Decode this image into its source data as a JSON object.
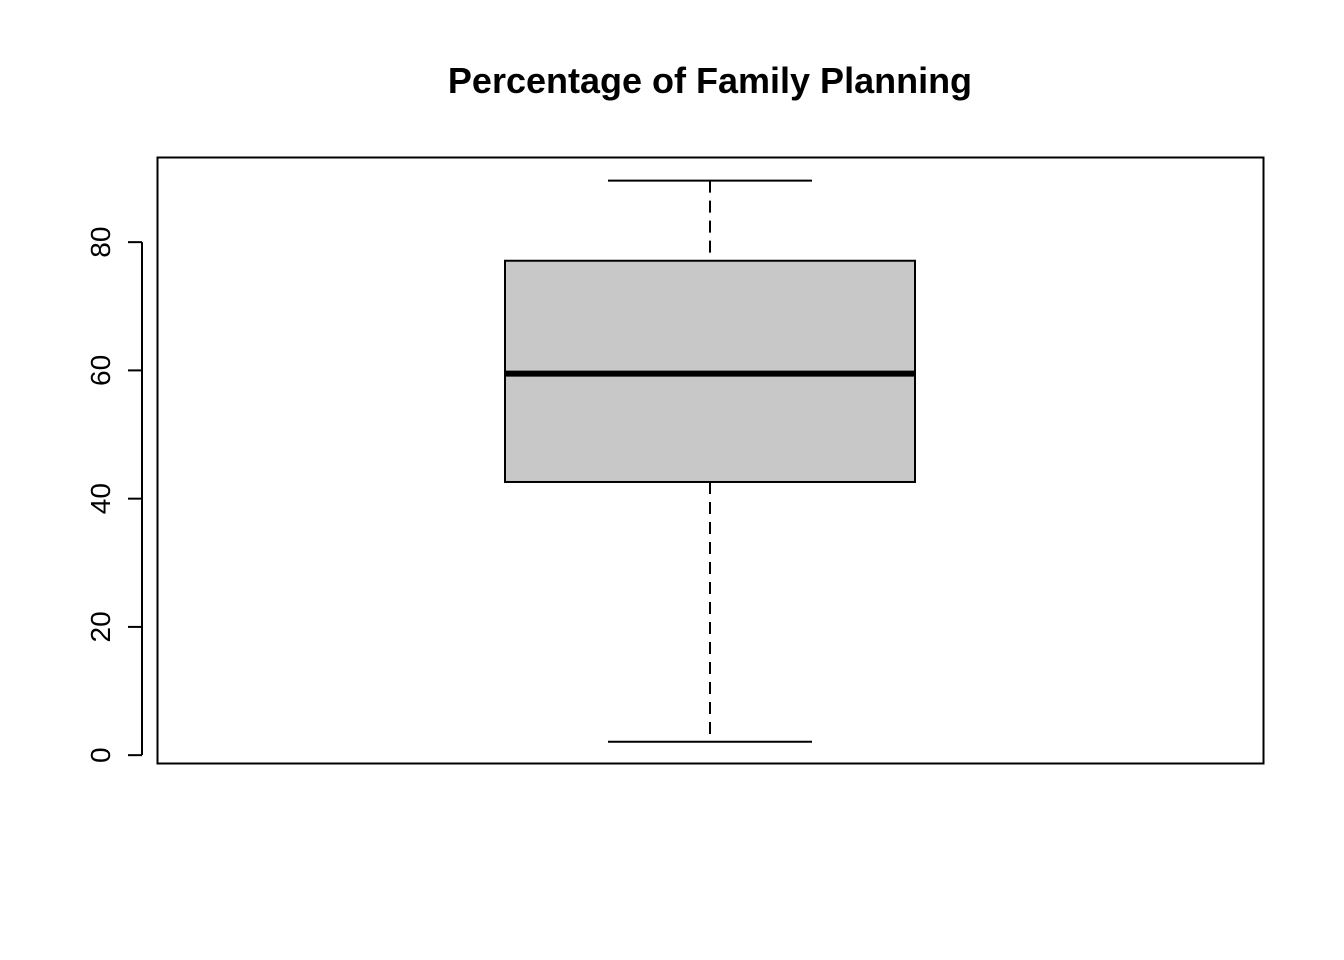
{
  "chart_data": {
    "type": "boxplot",
    "title": "Percentage of Family Planning",
    "xlabel": "",
    "ylabel": "",
    "ylim": [
      -1.3,
      93.2
    ],
    "y_ticks": [
      0,
      20,
      40,
      60,
      80
    ],
    "y_tick_labels": [
      "0",
      "20",
      "40",
      "60",
      "80"
    ],
    "grid": false,
    "legend": "none",
    "box": {
      "min": 2.1,
      "q1": 42.6,
      "median": 59.5,
      "q3": 77.1,
      "max": 89.6
    },
    "colors": {
      "box_fill": "#c8c8c8",
      "stroke": "#000000",
      "background": "#ffffff"
    }
  }
}
